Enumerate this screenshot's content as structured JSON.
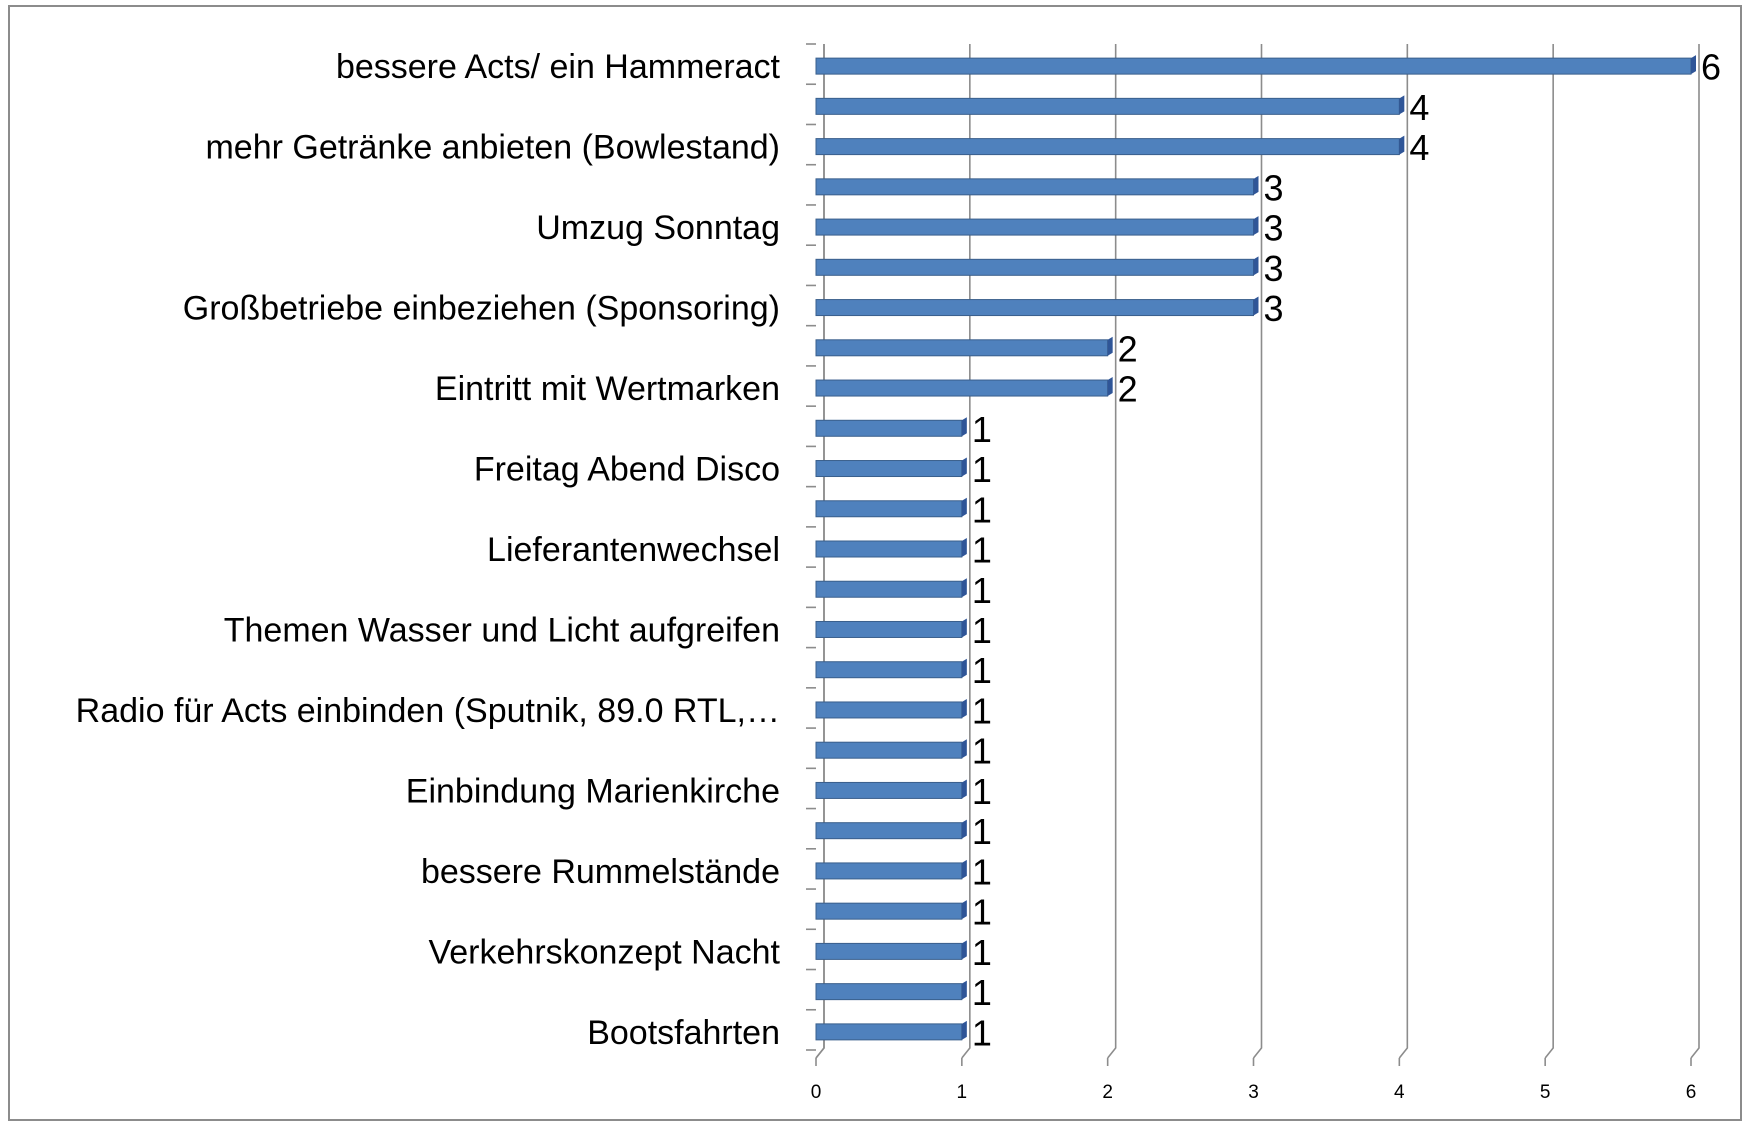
{
  "chart_data": {
    "type": "bar",
    "orientation": "horizontal",
    "categories": [
      "bessere Acts/ ein Hammeract",
      null,
      "mehr Getränke anbieten (Bowlestand)",
      null,
      "Umzug Sonntag",
      null,
      "Großbetriebe einbeziehen (Sponsoring)",
      null,
      "Eintritt mit Wertmarken",
      null,
      "Freitag Abend Disco",
      null,
      "Lieferantenwechsel",
      null,
      "Themen Wasser und Licht aufgreifen",
      null,
      "Radio für Acts einbinden (Sputnik, 89.0 RTL,…",
      null,
      "Einbindung Marienkirche",
      null,
      "bessere Rummelstände",
      null,
      "Verkehrskonzept Nacht",
      null,
      "Bootsfahrten"
    ],
    "values": [
      6,
      4,
      4,
      3,
      3,
      3,
      3,
      2,
      2,
      1,
      1,
      1,
      1,
      1,
      1,
      1,
      1,
      1,
      1,
      1,
      1,
      1,
      1,
      1,
      1
    ],
    "color": "#4f81bd",
    "xlim": [
      0,
      6
    ],
    "xticks": [
      0,
      1,
      2,
      3,
      4,
      5,
      6
    ],
    "grid": true
  }
}
